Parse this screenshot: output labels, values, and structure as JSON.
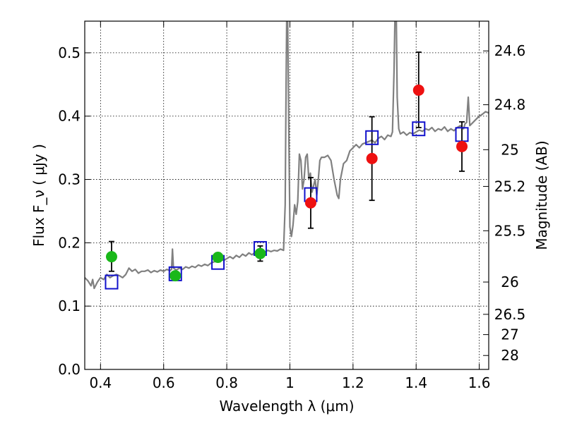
{
  "chart_data": {
    "type": "scatter",
    "xlabel": "Wavelength  λ (μm)",
    "ylabel": "Flux  F_ν  ( μJy )",
    "y2label": "Magnitude (AB)",
    "xlim": [
      0.35,
      1.63
    ],
    "ylim": [
      0.0,
      0.55
    ],
    "grid": true,
    "x_ticks": [
      0.4,
      0.6,
      0.8,
      1.0,
      1.2,
      1.4,
      1.6
    ],
    "x_tick_labels": [
      "0.4",
      "0.6",
      "0.8",
      "1",
      "1.2",
      "1.4",
      "1.6"
    ],
    "y_ticks": [
      0.0,
      0.1,
      0.2,
      0.3,
      0.4,
      0.5
    ],
    "y_tick_labels": [
      "0.0",
      "0.1",
      "0.2",
      "0.3",
      "0.4",
      "0.5"
    ],
    "y2_ticks": [
      {
        "label": "24.6",
        "flux": 0.503
      },
      {
        "label": "24.8",
        "flux": 0.418
      },
      {
        "label": "25",
        "flux": 0.347
      },
      {
        "label": "25.2",
        "flux": 0.289
      },
      {
        "label": "25.5",
        "flux": 0.219
      },
      {
        "label": "26",
        "flux": 0.138
      },
      {
        "label": "26.5",
        "flux": 0.087
      },
      {
        "label": "27",
        "flux": 0.055
      },
      {
        "label": "28",
        "flux": 0.022
      }
    ],
    "series": [
      {
        "kind": "line",
        "color": "#808080",
        "points": [
          [
            0.35,
            0.145
          ],
          [
            0.36,
            0.14
          ],
          [
            0.37,
            0.132
          ],
          [
            0.375,
            0.142
          ],
          [
            0.38,
            0.128
          ],
          [
            0.39,
            0.138
          ],
          [
            0.4,
            0.145
          ],
          [
            0.41,
            0.142
          ],
          [
            0.42,
            0.15
          ],
          [
            0.43,
            0.145
          ],
          [
            0.44,
            0.148
          ],
          [
            0.45,
            0.15
          ],
          [
            0.46,
            0.148
          ],
          [
            0.47,
            0.145
          ],
          [
            0.48,
            0.15
          ],
          [
            0.49,
            0.16
          ],
          [
            0.5,
            0.155
          ],
          [
            0.51,
            0.158
          ],
          [
            0.52,
            0.152
          ],
          [
            0.53,
            0.155
          ],
          [
            0.54,
            0.155
          ],
          [
            0.55,
            0.157
          ],
          [
            0.56,
            0.153
          ],
          [
            0.57,
            0.156
          ],
          [
            0.58,
            0.154
          ],
          [
            0.59,
            0.157
          ],
          [
            0.6,
            0.155
          ],
          [
            0.61,
            0.158
          ],
          [
            0.62,
            0.156
          ],
          [
            0.625,
            0.158
          ],
          [
            0.628,
            0.19
          ],
          [
            0.631,
            0.16
          ],
          [
            0.64,
            0.157
          ],
          [
            0.65,
            0.16
          ],
          [
            0.66,
            0.158
          ],
          [
            0.67,
            0.162
          ],
          [
            0.68,
            0.16
          ],
          [
            0.69,
            0.163
          ],
          [
            0.7,
            0.161
          ],
          [
            0.71,
            0.165
          ],
          [
            0.72,
            0.163
          ],
          [
            0.73,
            0.166
          ],
          [
            0.74,
            0.164
          ],
          [
            0.75,
            0.168
          ],
          [
            0.76,
            0.17
          ],
          [
            0.77,
            0.172
          ],
          [
            0.78,
            0.174
          ],
          [
            0.79,
            0.172
          ],
          [
            0.8,
            0.175
          ],
          [
            0.81,
            0.178
          ],
          [
            0.82,
            0.175
          ],
          [
            0.83,
            0.18
          ],
          [
            0.84,
            0.177
          ],
          [
            0.85,
            0.182
          ],
          [
            0.86,
            0.179
          ],
          [
            0.87,
            0.184
          ],
          [
            0.88,
            0.181
          ],
          [
            0.89,
            0.185
          ],
          [
            0.9,
            0.183
          ],
          [
            0.91,
            0.187
          ],
          [
            0.92,
            0.185
          ],
          [
            0.93,
            0.188
          ],
          [
            0.94,
            0.186
          ],
          [
            0.95,
            0.188
          ],
          [
            0.96,
            0.187
          ],
          [
            0.97,
            0.19
          ],
          [
            0.98,
            0.188
          ],
          [
            0.985,
            0.26
          ],
          [
            0.988,
            0.45
          ],
          [
            0.99,
            0.56
          ],
          [
            0.993,
            0.56
          ],
          [
            0.996,
            0.4
          ],
          [
            1.0,
            0.225
          ],
          [
            1.005,
            0.21
          ],
          [
            1.01,
            0.228
          ],
          [
            1.015,
            0.26
          ],
          [
            1.02,
            0.245
          ],
          [
            1.025,
            0.265
          ],
          [
            1.03,
            0.34
          ],
          [
            1.035,
            0.33
          ],
          [
            1.04,
            0.285
          ],
          [
            1.045,
            0.3
          ],
          [
            1.05,
            0.335
          ],
          [
            1.055,
            0.34
          ],
          [
            1.06,
            0.3
          ],
          [
            1.065,
            0.31
          ],
          [
            1.07,
            0.28
          ],
          [
            1.075,
            0.29
          ],
          [
            1.08,
            0.3
          ],
          [
            1.085,
            0.275
          ],
          [
            1.09,
            0.3
          ],
          [
            1.095,
            0.33
          ],
          [
            1.1,
            0.335
          ],
          [
            1.11,
            0.335
          ],
          [
            1.12,
            0.338
          ],
          [
            1.13,
            0.33
          ],
          [
            1.14,
            0.3
          ],
          [
            1.15,
            0.275
          ],
          [
            1.155,
            0.27
          ],
          [
            1.16,
            0.3
          ],
          [
            1.17,
            0.325
          ],
          [
            1.18,
            0.33
          ],
          [
            1.19,
            0.345
          ],
          [
            1.2,
            0.35
          ],
          [
            1.21,
            0.355
          ],
          [
            1.22,
            0.35
          ],
          [
            1.23,
            0.356
          ],
          [
            1.24,
            0.358
          ],
          [
            1.25,
            0.36
          ],
          [
            1.26,
            0.362
          ],
          [
            1.27,
            0.358
          ],
          [
            1.28,
            0.365
          ],
          [
            1.29,
            0.368
          ],
          [
            1.3,
            0.363
          ],
          [
            1.31,
            0.37
          ],
          [
            1.32,
            0.368
          ],
          [
            1.325,
            0.375
          ],
          [
            1.33,
            0.47
          ],
          [
            1.333,
            0.56
          ],
          [
            1.337,
            0.56
          ],
          [
            1.34,
            0.43
          ],
          [
            1.345,
            0.38
          ],
          [
            1.35,
            0.372
          ],
          [
            1.36,
            0.375
          ],
          [
            1.37,
            0.37
          ],
          [
            1.38,
            0.374
          ],
          [
            1.39,
            0.372
          ],
          [
            1.4,
            0.375
          ],
          [
            1.41,
            0.378
          ],
          [
            1.42,
            0.376
          ],
          [
            1.43,
            0.38
          ],
          [
            1.44,
            0.378
          ],
          [
            1.45,
            0.382
          ],
          [
            1.46,
            0.376
          ],
          [
            1.47,
            0.38
          ],
          [
            1.48,
            0.378
          ],
          [
            1.49,
            0.383
          ],
          [
            1.5,
            0.376
          ],
          [
            1.51,
            0.38
          ],
          [
            1.52,
            0.377
          ],
          [
            1.53,
            0.382
          ],
          [
            1.54,
            0.385
          ],
          [
            1.55,
            0.38
          ],
          [
            1.555,
            0.388
          ],
          [
            1.56,
            0.39
          ],
          [
            1.565,
            0.43
          ],
          [
            1.57,
            0.385
          ],
          [
            1.58,
            0.39
          ],
          [
            1.59,
            0.395
          ],
          [
            1.6,
            0.4
          ],
          [
            1.61,
            0.403
          ],
          [
            1.62,
            0.407
          ],
          [
            1.63,
            0.405
          ]
        ]
      },
      {
        "kind": "points-circle",
        "color": "#1ab81a",
        "points": [
          {
            "x": 0.435,
            "y": 0.178,
            "yerr_lo": 0.023,
            "yerr_hi": 0.024
          },
          {
            "x": 0.637,
            "y": 0.148,
            "yerr_lo": 0.006,
            "yerr_hi": 0.006
          },
          {
            "x": 0.772,
            "y": 0.177,
            "yerr_lo": 0.007,
            "yerr_hi": 0.007
          },
          {
            "x": 0.906,
            "y": 0.183,
            "yerr_lo": 0.012,
            "yerr_hi": 0.012
          }
        ]
      },
      {
        "kind": "points-circle",
        "color": "#ee1111",
        "points": [
          {
            "x": 1.066,
            "y": 0.263,
            "yerr_lo": 0.04,
            "yerr_hi": 0.04
          },
          {
            "x": 1.26,
            "y": 0.333,
            "yerr_lo": 0.066,
            "yerr_hi": 0.066
          },
          {
            "x": 1.408,
            "y": 0.441,
            "yerr_lo": 0.059,
            "yerr_hi": 0.06
          },
          {
            "x": 1.545,
            "y": 0.352,
            "yerr_lo": 0.039,
            "yerr_hi": 0.039
          }
        ]
      },
      {
        "kind": "points-square",
        "color": "#1111cc",
        "points": [
          {
            "x": 0.435,
            "y": 0.138
          },
          {
            "x": 0.637,
            "y": 0.151
          },
          {
            "x": 0.772,
            "y": 0.169
          },
          {
            "x": 0.906,
            "y": 0.191
          },
          {
            "x": 1.066,
            "y": 0.276
          },
          {
            "x": 1.26,
            "y": 0.366
          },
          {
            "x": 1.408,
            "y": 0.38
          },
          {
            "x": 1.545,
            "y": 0.371
          }
        ]
      }
    ]
  }
}
